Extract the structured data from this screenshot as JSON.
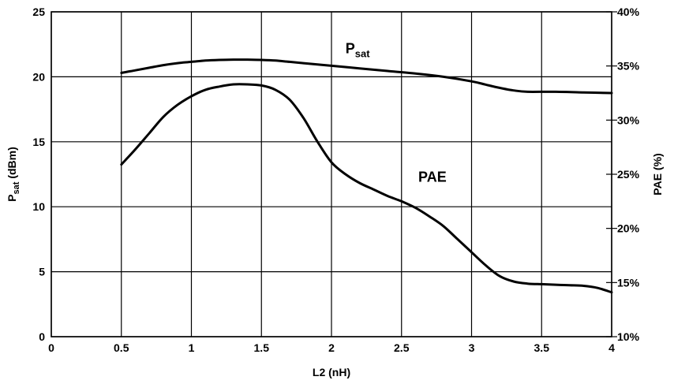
{
  "chart_data": {
    "type": "line",
    "xlabel": "L2 (nH)",
    "ylabel_left_main": "P",
    "ylabel_left_sub": "sat",
    "ylabel_left_suffix": " (dBm)",
    "ylabel_right": "PAE (%)",
    "xlim": [
      0,
      4
    ],
    "ylim_left": [
      0,
      25
    ],
    "ylim_right": [
      10,
      40
    ],
    "grid": true,
    "x_ticks": [
      "0",
      "0.5",
      "1",
      "1.5",
      "2",
      "2.5",
      "3",
      "3.5",
      "4"
    ],
    "y_left_ticks": [
      "0",
      "5",
      "10",
      "15",
      "20",
      "25"
    ],
    "y_right_ticks": [
      "10%",
      "15%",
      "20%",
      "25%",
      "30%",
      "35%",
      "40%"
    ],
    "series": [
      {
        "name_main": "P",
        "name_sub": "sat",
        "axis": "left",
        "x": [
          0.5,
          0.6,
          0.7,
          0.8,
          0.9,
          1.0,
          1.1,
          1.2,
          1.3,
          1.4,
          1.5,
          1.6,
          1.7,
          1.8,
          1.9,
          2.0,
          2.2,
          2.4,
          2.6,
          2.8,
          3.0,
          3.1,
          3.2,
          3.3,
          3.4,
          3.6,
          3.8,
          4.0
        ],
        "values": [
          20.3,
          20.5,
          20.7,
          20.9,
          21.05,
          21.15,
          21.25,
          21.3,
          21.32,
          21.32,
          21.3,
          21.25,
          21.15,
          21.05,
          20.95,
          20.85,
          20.65,
          20.45,
          20.25,
          20.0,
          19.65,
          19.4,
          19.15,
          18.95,
          18.85,
          18.85,
          18.8,
          18.75
        ]
      },
      {
        "name": "PAE",
        "axis": "right",
        "x": [
          0.5,
          0.6,
          0.7,
          0.8,
          0.9,
          1.0,
          1.1,
          1.2,
          1.3,
          1.4,
          1.5,
          1.6,
          1.7,
          1.8,
          1.9,
          2.0,
          2.1,
          2.2,
          2.3,
          2.4,
          2.5,
          2.6,
          2.7,
          2.8,
          2.9,
          3.0,
          3.1,
          3.2,
          3.3,
          3.4,
          3.5,
          3.6,
          3.7,
          3.8,
          3.9,
          4.0
        ],
        "values": [
          25.9,
          27.3,
          28.8,
          30.3,
          31.4,
          32.2,
          32.8,
          33.1,
          33.3,
          33.3,
          33.2,
          32.8,
          31.9,
          30.2,
          28.0,
          26.1,
          25.0,
          24.2,
          23.6,
          23.0,
          22.5,
          21.9,
          21.1,
          20.2,
          19.0,
          17.8,
          16.6,
          15.6,
          15.1,
          14.9,
          14.85,
          14.8,
          14.75,
          14.7,
          14.5,
          14.1
        ]
      }
    ],
    "annotations": [
      {
        "text_main": "P",
        "text_sub": "sat",
        "x": 2.1,
        "y": 21.8,
        "axis": "left"
      },
      {
        "text": "PAE",
        "x": 2.62,
        "y": 24.3,
        "axis": "right"
      }
    ]
  }
}
